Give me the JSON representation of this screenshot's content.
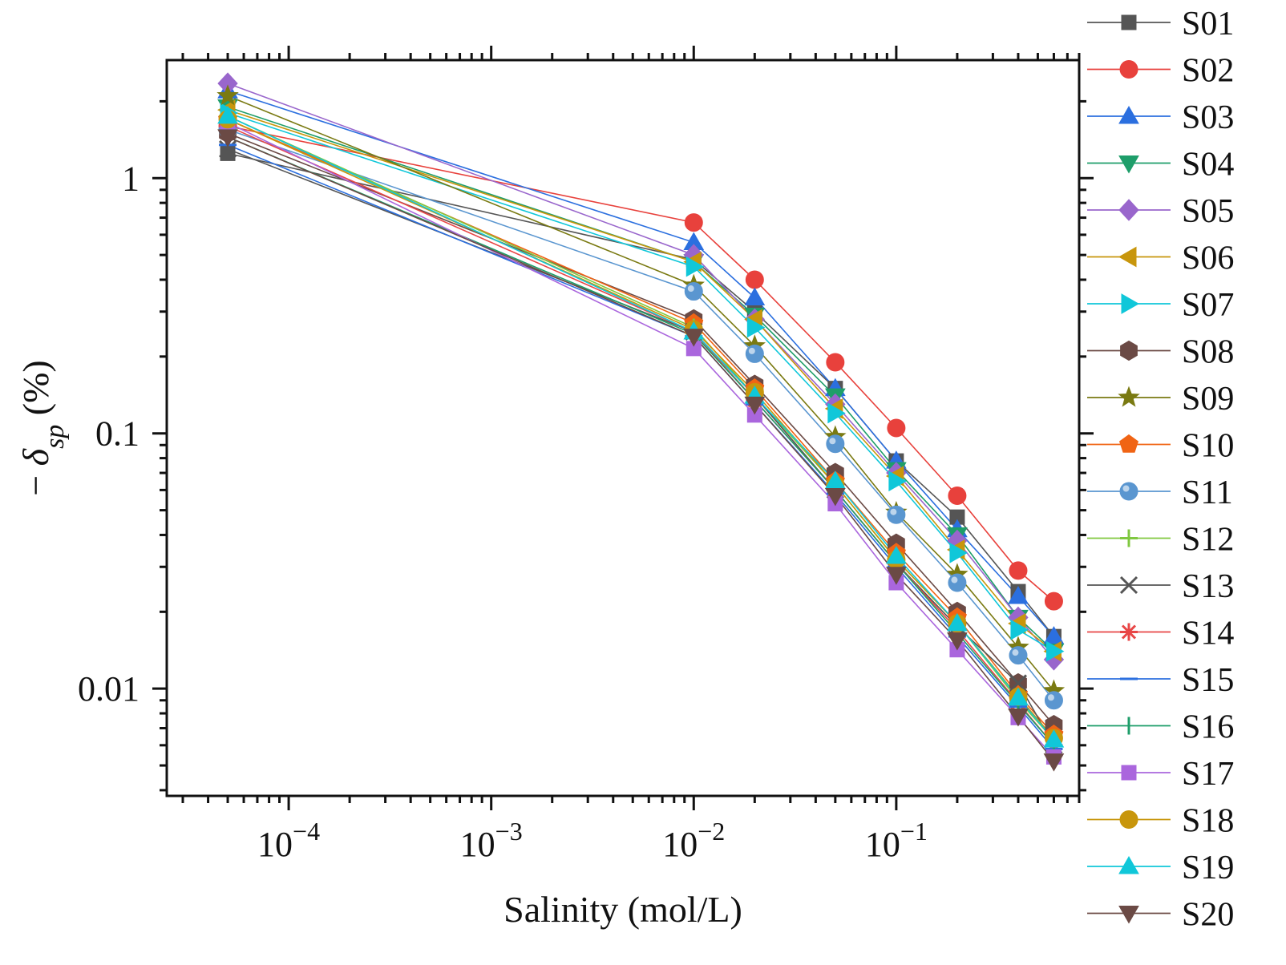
{
  "chart_data": {
    "type": "line",
    "title": "",
    "xlabel": "Salinity (mol/L)",
    "ylabel": "- δsp (%)",
    "ylabel_parts": {
      "prefix": "− ",
      "main": "δ",
      "sub": "sp",
      "suffix": " (%)"
    },
    "xscale": "log",
    "yscale": "log",
    "xlim": [
      2.5e-05,
      0.8
    ],
    "ylim": [
      0.0038,
      2.9
    ],
    "x_ticks": [
      {
        "value": 0.0001,
        "base": "10",
        "exp": "−4"
      },
      {
        "value": 0.001,
        "base": "10",
        "exp": "−3"
      },
      {
        "value": 0.01,
        "base": "10",
        "exp": "−2"
      },
      {
        "value": 0.1,
        "base": "10",
        "exp": "−1"
      }
    ],
    "y_ticks": [
      {
        "value": 1,
        "label": "1"
      },
      {
        "value": 0.1,
        "label": "0.1"
      },
      {
        "value": 0.01,
        "label": "0.01"
      }
    ],
    "grid": false,
    "legend_position": "right",
    "x": [
      5e-05,
      0.01,
      0.02,
      0.05,
      0.1,
      0.2,
      0.4,
      0.6
    ],
    "series": [
      {
        "name": "S01",
        "color": "#555555",
        "marker": "square",
        "values": [
          1.25,
          0.48,
          0.3,
          0.15,
          0.078,
          0.047,
          0.024,
          0.016
        ]
      },
      {
        "name": "S02",
        "color": "#e8413c",
        "marker": "circle",
        "values": [
          1.6,
          0.67,
          0.4,
          0.19,
          0.105,
          0.057,
          0.029,
          0.022
        ]
      },
      {
        "name": "S03",
        "color": "#2b6fdf",
        "marker": "triangle-up",
        "values": [
          2.2,
          0.56,
          0.34,
          0.15,
          0.078,
          0.042,
          0.023,
          0.016
        ]
      },
      {
        "name": "S04",
        "color": "#1e9e6a",
        "marker": "triangle-down",
        "values": [
          1.9,
          0.47,
          0.29,
          0.14,
          0.072,
          0.04,
          0.019,
          0.014
        ]
      },
      {
        "name": "S05",
        "color": "#9966cc",
        "marker": "diamond",
        "values": [
          2.35,
          0.5,
          0.28,
          0.13,
          0.07,
          0.038,
          0.019,
          0.013
        ]
      },
      {
        "name": "S06",
        "color": "#c8960c",
        "marker": "triangle-left",
        "values": [
          1.85,
          0.47,
          0.28,
          0.125,
          0.068,
          0.035,
          0.018,
          0.014
        ]
      },
      {
        "name": "S07",
        "color": "#10c7d9",
        "marker": "triangle-right",
        "values": [
          1.8,
          0.45,
          0.26,
          0.12,
          0.065,
          0.034,
          0.017,
          0.014
        ]
      },
      {
        "name": "S08",
        "color": "#6b4a45",
        "marker": "hexagon",
        "values": [
          1.5,
          0.28,
          0.155,
          0.07,
          0.037,
          0.02,
          0.0105,
          0.0072
        ]
      },
      {
        "name": "S09",
        "color": "#7a7a12",
        "marker": "star",
        "values": [
          2.1,
          0.38,
          0.22,
          0.097,
          0.049,
          0.028,
          0.0145,
          0.0098
        ]
      },
      {
        "name": "S10",
        "color": "#f06414",
        "marker": "pentagon",
        "values": [
          1.7,
          0.27,
          0.15,
          0.065,
          0.034,
          0.019,
          0.0095,
          0.0066
        ]
      },
      {
        "name": "S11",
        "color": "#5a96d0",
        "marker": "sphere",
        "values": [
          1.55,
          0.36,
          0.205,
          0.091,
          0.048,
          0.026,
          0.0135,
          0.009
        ]
      },
      {
        "name": "S12",
        "color": "#80c840",
        "marker": "plus",
        "values": [
          1.75,
          0.26,
          0.14,
          0.063,
          0.032,
          0.018,
          0.009,
          0.0063
        ]
      },
      {
        "name": "S13",
        "color": "#555555",
        "marker": "x",
        "values": [
          1.3,
          0.25,
          0.14,
          0.06,
          0.031,
          0.0175,
          0.0105,
          0.006
        ]
      },
      {
        "name": "S14",
        "color": "#e84646",
        "marker": "asterisk",
        "values": [
          1.6,
          0.25,
          0.135,
          0.06,
          0.031,
          0.017,
          0.0088,
          0.006
        ]
      },
      {
        "name": "S15",
        "color": "#2b6fdf",
        "marker": "hline",
        "values": [
          1.35,
          0.24,
          0.13,
          0.058,
          0.03,
          0.016,
          0.0085,
          0.0058
        ]
      },
      {
        "name": "S16",
        "color": "#1e9e6a",
        "marker": "vline",
        "values": [
          1.45,
          0.245,
          0.135,
          0.06,
          0.031,
          0.0165,
          0.0087,
          0.006
        ]
      },
      {
        "name": "S17",
        "color": "#aa66dd",
        "marker": "square",
        "values": [
          1.65,
          0.215,
          0.118,
          0.053,
          0.026,
          0.0142,
          0.0077,
          0.0054
        ]
      },
      {
        "name": "S18",
        "color": "#c8960c",
        "marker": "circle",
        "values": [
          1.7,
          0.255,
          0.145,
          0.063,
          0.032,
          0.018,
          0.0093,
          0.0064
        ]
      },
      {
        "name": "S19",
        "color": "#10c7d9",
        "marker": "triangle-up",
        "values": [
          1.75,
          0.25,
          0.14,
          0.065,
          0.033,
          0.018,
          0.0092,
          0.0063
        ]
      },
      {
        "name": "S20",
        "color": "#6b4a45",
        "marker": "triangle-down",
        "values": [
          1.45,
          0.24,
          0.13,
          0.057,
          0.028,
          0.0155,
          0.0078,
          0.0052
        ]
      }
    ]
  }
}
